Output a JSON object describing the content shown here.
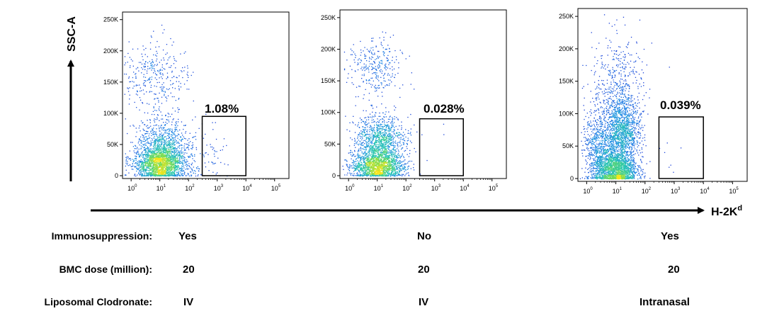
{
  "chart_data": {
    "type": "scatter",
    "plot_style": "flow cytometry density dot plot (pseudocolor)",
    "y_axis_title": "SSC-A",
    "x_axis_title": "H-2K",
    "x_axis_title_superscript": "d",
    "colors": {
      "density_low": "#1a2fd6",
      "density_mid": "#27c7b0",
      "density_high": "#f7e51c",
      "gate": "#000000",
      "axis": "#000000"
    },
    "panels": [
      {
        "y_ticks": [
          "0",
          "50K",
          "100K",
          "150K",
          "200K",
          "250K"
        ],
        "y_tick_values": [
          0,
          50000,
          100000,
          150000,
          200000,
          250000
        ],
        "x_ticks": [
          {
            "base": "10",
            "exp": "0"
          },
          {
            "base": "10",
            "exp": "1"
          },
          {
            "base": "10",
            "exp": "2"
          },
          {
            "base": "10",
            "exp": "3"
          },
          {
            "base": "10",
            "exp": "4"
          },
          {
            "base": "10",
            "exp": "5"
          }
        ],
        "x_scale": "log",
        "ylim": [
          0,
          262144
        ],
        "gate_percent": "1.08%",
        "gate_x_range": [
          300,
          10000
        ],
        "gate_y_range": [
          0,
          95000
        ],
        "populations": [
          {
            "x_log_center": 1.0,
            "y_center": 18000,
            "x_log_sd": 0.45,
            "y_sd": 14000,
            "n": 1700
          },
          {
            "x_log_center": 1.1,
            "y_center": 48000,
            "x_log_sd": 0.45,
            "y_sd": 22000,
            "n": 900
          },
          {
            "x_log_center": 0.9,
            "y_center": 160000,
            "x_log_sd": 0.55,
            "y_sd": 28000,
            "n": 320
          },
          {
            "x_log_center": 2.8,
            "y_center": 40000,
            "x_log_sd": 0.25,
            "y_sd": 25000,
            "n": 55
          }
        ]
      },
      {
        "y_ticks": [
          "0",
          "50K",
          "100K",
          "150K",
          "200K",
          "250K"
        ],
        "y_tick_values": [
          0,
          50000,
          100000,
          150000,
          200000,
          250000
        ],
        "x_ticks": [
          {
            "base": "10",
            "exp": "0"
          },
          {
            "base": "10",
            "exp": "1"
          },
          {
            "base": "10",
            "exp": "2"
          },
          {
            "base": "10",
            "exp": "3"
          },
          {
            "base": "10",
            "exp": "4"
          },
          {
            "base": "10",
            "exp": "5"
          }
        ],
        "x_scale": "log",
        "ylim": [
          0,
          262144
        ],
        "gate_percent": "0.028%",
        "gate_x_range": [
          300,
          10000
        ],
        "gate_y_range": [
          0,
          90000
        ],
        "populations": [
          {
            "x_log_center": 1.0,
            "y_center": 15000,
            "x_log_sd": 0.45,
            "y_sd": 12000,
            "n": 1500
          },
          {
            "x_log_center": 1.1,
            "y_center": 55000,
            "x_log_sd": 0.42,
            "y_sd": 20000,
            "n": 1100
          },
          {
            "x_log_center": 0.9,
            "y_center": 170000,
            "x_log_sd": 0.45,
            "y_sd": 24000,
            "n": 300
          },
          {
            "x_log_center": 2.9,
            "y_center": 40000,
            "x_log_sd": 0.3,
            "y_sd": 20000,
            "n": 3
          }
        ]
      },
      {
        "y_ticks": [
          "0",
          "50K",
          "100K",
          "150K",
          "200K",
          "250K"
        ],
        "y_tick_values": [
          0,
          50000,
          100000,
          150000,
          200000,
          250000
        ],
        "x_ticks": [
          {
            "base": "10",
            "exp": "0"
          },
          {
            "base": "10",
            "exp": "1"
          },
          {
            "base": "10",
            "exp": "2"
          },
          {
            "base": "10",
            "exp": "3"
          },
          {
            "base": "10",
            "exp": "4"
          },
          {
            "base": "10",
            "exp": "5"
          }
        ],
        "x_scale": "log",
        "ylim": [
          0,
          262144
        ],
        "gate_percent": "0.039%",
        "gate_x_range": [
          300,
          10000
        ],
        "gate_y_range": [
          0,
          95000
        ],
        "populations": [
          {
            "x_log_center": 1.0,
            "y_center": 15000,
            "x_log_sd": 0.35,
            "y_sd": 14000,
            "n": 1500
          },
          {
            "x_log_center": 1.2,
            "y_center": 70000,
            "x_log_sd": 0.3,
            "y_sd": 25000,
            "n": 1300
          },
          {
            "x_log_center": 1.1,
            "y_center": 140000,
            "x_log_sd": 0.45,
            "y_sd": 40000,
            "n": 500
          },
          {
            "x_log_center": 0.4,
            "y_center": 50000,
            "x_log_sd": 0.25,
            "y_sd": 30000,
            "n": 700
          },
          {
            "x_log_center": 2.9,
            "y_center": 40000,
            "x_log_sd": 0.3,
            "y_sd": 20000,
            "n": 6
          }
        ]
      }
    ]
  },
  "conditions": {
    "rows": [
      {
        "label": "Immunosuppression:",
        "values": [
          "Yes",
          "No",
          "Yes"
        ]
      },
      {
        "label": "BMC dose (million):",
        "values": [
          "20",
          "20",
          "20"
        ]
      },
      {
        "label": "Liposomal Clodronate:",
        "values": [
          "IV",
          "IV",
          "Intranasal"
        ]
      }
    ]
  }
}
